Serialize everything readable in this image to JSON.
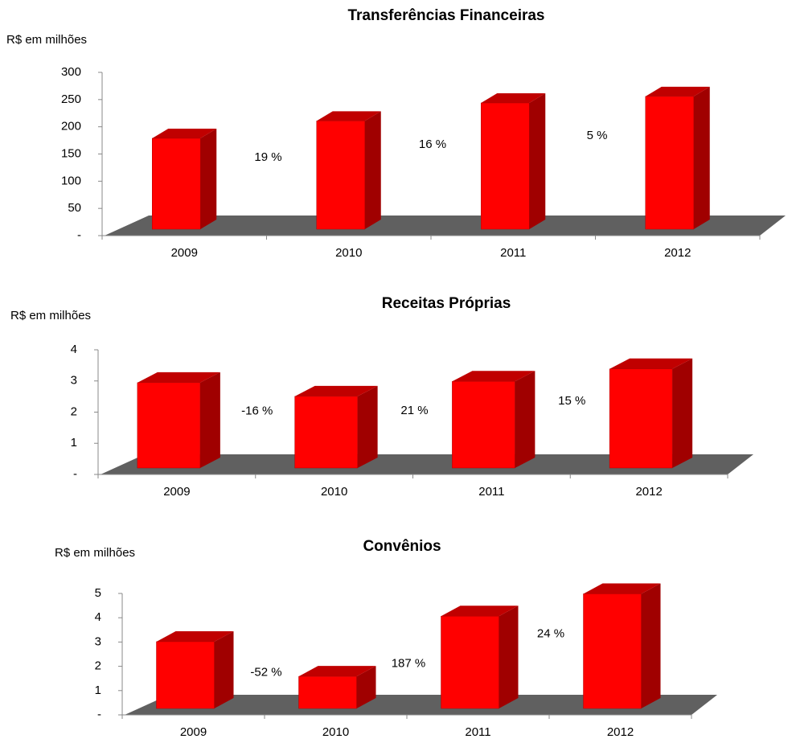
{
  "chart_data": [
    {
      "type": "bar3d",
      "title": "Transferências Financeiras",
      "y_label": "R$ em milhões",
      "categories": [
        "2009",
        "2010",
        "2011",
        "2012"
      ],
      "values": [
        167,
        199,
        232,
        244
      ],
      "color": "#ff0000",
      "ylim": [
        0,
        300
      ],
      "yticks": [
        {
          "value": 0,
          "label": "-"
        },
        50,
        100,
        150,
        200,
        250,
        300
      ],
      "annotations": [
        {
          "text": "19 %",
          "color": "#000000"
        },
        {
          "text": "16 %",
          "color": "#000000"
        },
        {
          "text": "5 %",
          "color": "#000000"
        }
      ]
    },
    {
      "type": "bar3d",
      "title": "Receitas Próprias",
      "y_label": "R$ em milhões",
      "categories": [
        "2009",
        "2010",
        "2011",
        "2012"
      ],
      "values": [
        2.74,
        2.3,
        2.78,
        3.18
      ],
      "color": "#ff0000",
      "ylim": [
        0,
        4
      ],
      "yticks": [
        {
          "value": 0,
          "label": "-"
        },
        1,
        2,
        3,
        4
      ],
      "annotations": [
        {
          "text": "-16 %",
          "color": "#ff0000"
        },
        {
          "text": "21 %",
          "color": "#000000"
        },
        {
          "text": "15 %",
          "color": "#000000"
        }
      ]
    },
    {
      "type": "bar3d",
      "title": "Convênios",
      "y_label": "R$ em milhões",
      "categories": [
        "2009",
        "2010",
        "2011",
        "2012"
      ],
      "values": [
        2.75,
        1.32,
        3.8,
        4.72
      ],
      "color": "#ff0000",
      "ylim": [
        0,
        5
      ],
      "yticks": [
        {
          "value": 0,
          "label": "-"
        },
        1,
        2,
        3,
        4,
        5
      ],
      "annotations": [
        {
          "text": "-52 %",
          "color": "#ff0000"
        },
        {
          "text": "187 %",
          "color": "#000000"
        },
        {
          "text": "24 %",
          "color": "#000000"
        }
      ]
    }
  ]
}
